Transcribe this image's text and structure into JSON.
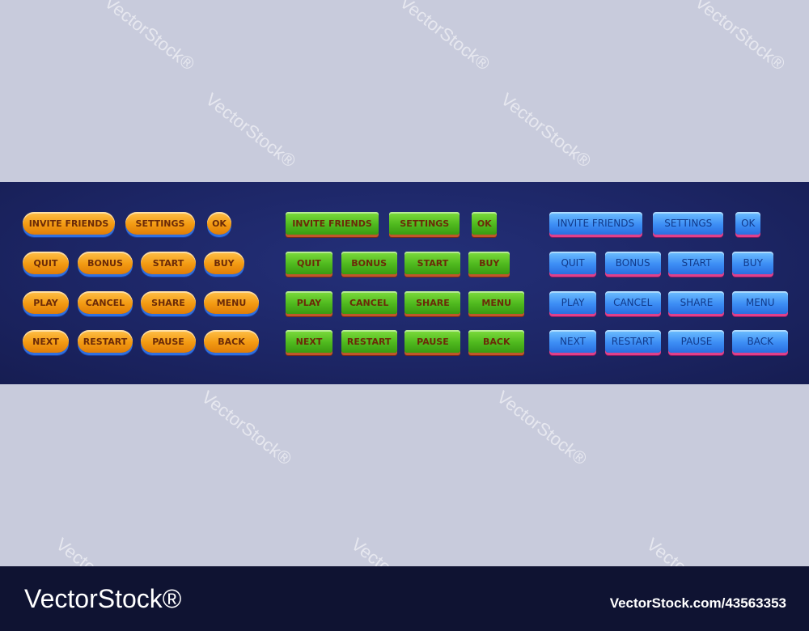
{
  "watermark": "VectorStock®",
  "button_sets": [
    {
      "style": "orange",
      "color": "#f39a12",
      "rows": [
        [
          "INVITE FRIENDS",
          "SETTINGS",
          "OK"
        ],
        [
          "QUIT",
          "BONUS",
          "START",
          "BUY"
        ],
        [
          "PLAY",
          "CANCEL",
          "SHARE",
          "MENU"
        ],
        [
          "NEXT",
          "RESTART",
          "PAUSE",
          "BACK"
        ]
      ]
    },
    {
      "style": "green",
      "color": "#4fb91e",
      "rows": [
        [
          "INVITE FRIENDS",
          "SETTINGS",
          "OK"
        ],
        [
          "QUIT",
          "BONUS",
          "START",
          "BUY"
        ],
        [
          "PLAY",
          "CANCEL",
          "SHARE",
          "MENU"
        ],
        [
          "NEXT",
          "RESTART",
          "PAUSE",
          "BACK"
        ]
      ]
    },
    {
      "style": "blue",
      "color": "#3d8ef5",
      "rows": [
        [
          "INVITE FRIENDS",
          "SETTINGS",
          "OK"
        ],
        [
          "QUIT",
          "BONUS",
          "START",
          "BUY"
        ],
        [
          "PLAY",
          "CANCEL",
          "SHARE",
          "MENU"
        ],
        [
          "NEXT",
          "RESTART",
          "PAUSE",
          "BACK"
        ]
      ]
    }
  ],
  "footer": {
    "logo": "VectorStock®",
    "stock_id": "VectorStock.com/43563353"
  }
}
